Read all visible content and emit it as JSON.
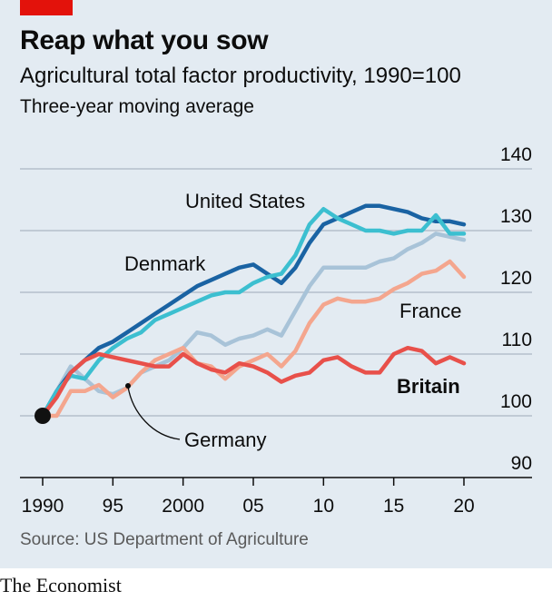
{
  "header": {
    "title": "Reap what you sow",
    "subtitle": "Agricultural total factor productivity, 1990=100",
    "note": "Three-year moving average"
  },
  "footer": {
    "source": "Source: US Department of Agriculture",
    "brand": "The Economist"
  },
  "chart_data": {
    "type": "line",
    "title": "Reap what you sow",
    "subtitle": "Agricultural total factor productivity, 1990=100",
    "ylabel": "",
    "xlabel": "",
    "ylim": [
      90,
      140
    ],
    "xlim": [
      1990,
      2020
    ],
    "y_ticks": [
      90,
      100,
      110,
      120,
      130,
      140
    ],
    "x_ticks": [
      1990,
      1995,
      2000,
      2005,
      2010,
      2015,
      2020
    ],
    "x_tick_labels": [
      "1990",
      "95",
      "2000",
      "05",
      "10",
      "15",
      "20"
    ],
    "x": [
      1990,
      1991,
      1992,
      1993,
      1994,
      1995,
      1996,
      1997,
      1998,
      1999,
      2000,
      2001,
      2002,
      2003,
      2004,
      2005,
      2006,
      2007,
      2008,
      2009,
      2010,
      2011,
      2012,
      2013,
      2014,
      2015,
      2016,
      2017,
      2018,
      2019,
      2020
    ],
    "series": [
      {
        "name": "Germany",
        "color": "#a8c3d8",
        "values": [
          100,
          104,
          108,
          106,
          104,
          103.5,
          104.5,
          107,
          108,
          109,
          111,
          113.5,
          113,
          111.5,
          112.5,
          113,
          114,
          113,
          117,
          121,
          124,
          124,
          124,
          124,
          125,
          125.5,
          127,
          128,
          129.5,
          129,
          128.5
        ]
      },
      {
        "name": "Denmark",
        "color": "#1a63a3",
        "values": [
          100,
          104,
          107,
          109,
          111,
          112,
          113.5,
          115,
          116.5,
          118,
          119.5,
          121,
          122,
          123,
          124,
          124.5,
          123,
          121.5,
          124,
          128,
          131,
          132,
          133,
          134,
          134,
          133.5,
          133,
          132,
          131.5,
          131.5,
          131
        ]
      },
      {
        "name": "United States",
        "color": "#3cbfd0",
        "values": [
          100,
          104,
          106.5,
          106,
          109,
          111,
          112.5,
          113.5,
          115.5,
          116.5,
          117.5,
          118.5,
          119.5,
          120,
          120,
          121.5,
          122.5,
          123,
          126,
          131,
          133.5,
          132,
          131,
          130,
          130,
          129.5,
          130,
          130,
          132.5,
          129.5,
          129.5
        ]
      },
      {
        "name": "France",
        "color": "#f4a68e",
        "values": [
          100,
          100,
          104,
          104,
          105,
          103,
          104.5,
          107,
          109,
          110,
          111,
          108.5,
          108,
          106,
          108,
          109,
          110,
          108,
          110.5,
          115,
          118,
          119,
          118.5,
          118.5,
          119,
          120.5,
          121.5,
          123,
          123.5,
          125,
          122.5
        ]
      },
      {
        "name": "Britain",
        "color": "#e8504a",
        "values": [
          100,
          103,
          107,
          109,
          110,
          109.5,
          109,
          108.5,
          108,
          108,
          110,
          108.5,
          107.5,
          107,
          108.5,
          108,
          107,
          105.5,
          106.5,
          107,
          109,
          109.5,
          108,
          107,
          107,
          110,
          111,
          110.5,
          108.5,
          109.5,
          108.5
        ]
      }
    ],
    "labels": [
      {
        "text": "United States",
        "series": "United States"
      },
      {
        "text": "Denmark",
        "series": "Denmark"
      },
      {
        "text": "France",
        "series": "France"
      },
      {
        "text": "Britain",
        "series": "Britain",
        "bold": true
      },
      {
        "text": "Germany",
        "series": "Germany"
      }
    ],
    "start_marker": {
      "x": 1990,
      "y": 100
    },
    "grid": true
  }
}
